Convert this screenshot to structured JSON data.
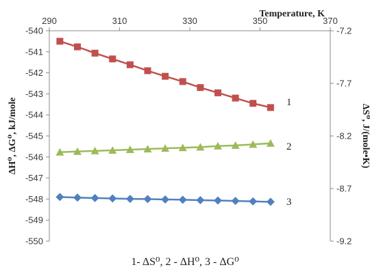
{
  "chart_data": {
    "type": "line",
    "title": "",
    "x_axis": {
      "label": "Temperature, K",
      "range": [
        290,
        370
      ],
      "ticks": [
        290,
        310,
        330,
        350,
        370
      ],
      "position": "top"
    },
    "y_axis_left": {
      "label": "ΔH⁰, ΔG⁰, kJ/mole",
      "range": [
        -550,
        -540
      ],
      "ticks": [
        -540,
        -541,
        -542,
        -543,
        -544,
        -545,
        -546,
        -547,
        -548,
        -549,
        -550
      ]
    },
    "y_axis_right": {
      "label": "ΔS⁰, J/(mole•K)",
      "range": [
        -9.2,
        -7.2
      ],
      "ticks": [
        -7.2,
        -7.7,
        -8.2,
        -8.7,
        -9.2
      ]
    },
    "x": [
      293,
      298,
      303,
      308,
      313,
      318,
      323,
      328,
      333,
      338,
      343,
      348,
      353
    ],
    "series": [
      {
        "name": "1",
        "axis": "right",
        "color": "#c0504d",
        "marker": "square",
        "values": [
          -7.3,
          -7.353,
          -7.413,
          -7.468,
          -7.523,
          -7.58,
          -7.633,
          -7.683,
          -7.74,
          -7.79,
          -7.84,
          -7.89,
          -7.93
        ]
      },
      {
        "name": "2",
        "axis": "left",
        "color": "#9bbb59",
        "marker": "triangle",
        "values": [
          -545.77,
          -545.74,
          -545.71,
          -545.68,
          -545.65,
          -545.62,
          -545.59,
          -545.56,
          -545.53,
          -545.48,
          -545.45,
          -545.4,
          -545.35
        ]
      },
      {
        "name": "3",
        "axis": "left",
        "color": "#4f81bd",
        "marker": "diamond",
        "values": [
          -547.9,
          -547.93,
          -547.95,
          -547.97,
          -547.99,
          -548.0,
          -548.02,
          -548.03,
          -548.05,
          -548.07,
          -548.09,
          -548.11,
          -548.13
        ]
      }
    ],
    "caption": "1- ΔS⁰, 2 - ΔH⁰, 3 - ΔG⁰",
    "grid": false,
    "legend": "none"
  }
}
